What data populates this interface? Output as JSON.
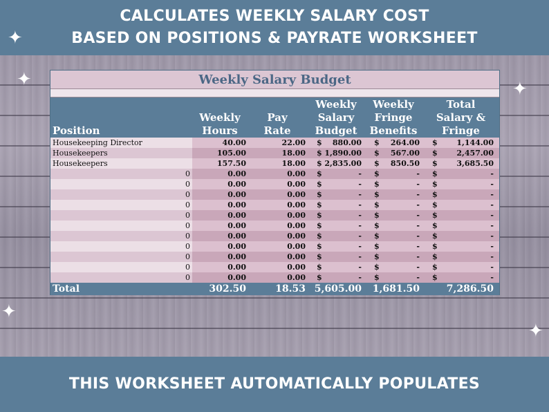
{
  "banner": {
    "line1": "CALCULATES WEEKLY SALARY COST",
    "line2": "BASED ON POSITIONS & PAYRATE WORKSHEET",
    "bottom": "THIS WORKSHEET AUTOMATICALLY POPULATES"
  },
  "sheet": {
    "title": "Weekly Salary Budget",
    "headers": {
      "position": "Position",
      "hours": [
        "Weekly",
        "Hours"
      ],
      "rate": [
        "Pay",
        "Rate"
      ],
      "salary": [
        "Weekly",
        "Salary",
        "Budget"
      ],
      "fringe": [
        "Weekly",
        "Fringe",
        "Benefits"
      ],
      "total": [
        "Total",
        "Salary &",
        "Fringe"
      ]
    },
    "currency": "$",
    "rows": [
      {
        "position": "Housekeeping Director",
        "hours": "40.00",
        "rate": "22.00",
        "salary": "880.00",
        "fringe": "264.00",
        "total": "1,144.00"
      },
      {
        "position": "Housekeepers",
        "hours": "105.00",
        "rate": "18.00",
        "salary": "1,890.00",
        "fringe": "567.00",
        "total": "2,457.00"
      },
      {
        "position": "Housekeepers",
        "hours": "157.50",
        "rate": "18.00",
        "salary": "2,835.00",
        "fringe": "850.50",
        "total": "3,685.50"
      },
      {
        "position": "0",
        "hours": "0.00",
        "rate": "0.00",
        "salary": "-",
        "fringe": "-",
        "total": "-"
      },
      {
        "position": "0",
        "hours": "0.00",
        "rate": "0.00",
        "salary": "-",
        "fringe": "-",
        "total": "-"
      },
      {
        "position": "0",
        "hours": "0.00",
        "rate": "0.00",
        "salary": "-",
        "fringe": "-",
        "total": "-"
      },
      {
        "position": "0",
        "hours": "0.00",
        "rate": "0.00",
        "salary": "-",
        "fringe": "-",
        "total": "-"
      },
      {
        "position": "0",
        "hours": "0.00",
        "rate": "0.00",
        "salary": "-",
        "fringe": "-",
        "total": "-"
      },
      {
        "position": "0",
        "hours": "0.00",
        "rate": "0.00",
        "salary": "-",
        "fringe": "-",
        "total": "-"
      },
      {
        "position": "0",
        "hours": "0.00",
        "rate": "0.00",
        "salary": "-",
        "fringe": "-",
        "total": "-"
      },
      {
        "position": "0",
        "hours": "0.00",
        "rate": "0.00",
        "salary": "-",
        "fringe": "-",
        "total": "-"
      },
      {
        "position": "0",
        "hours": "0.00",
        "rate": "0.00",
        "salary": "-",
        "fringe": "-",
        "total": "-"
      },
      {
        "position": "0",
        "hours": "0.00",
        "rate": "0.00",
        "salary": "-",
        "fringe": "-",
        "total": "-"
      },
      {
        "position": "0",
        "hours": "0.00",
        "rate": "0.00",
        "salary": "-",
        "fringe": "-",
        "total": "-"
      },
      {
        "position": "0",
        "hours": "0.00",
        "rate": "0.00",
        "salary": "-",
        "fringe": "-",
        "total": "-"
      }
    ],
    "totals": {
      "label": "Total",
      "hours": "302.50",
      "rate": "18.53",
      "salary": "5,605.00",
      "fringe": "1,681.50",
      "total": "7,286.50"
    }
  },
  "colors": {
    "banner": "#5b7d98",
    "header_fill": "#5b7d98",
    "title_text": "#4b6785",
    "row_light": "#ecdfe6",
    "row_dark": "#dcc6d3",
    "col_light": "#dcc0cf",
    "col_dark": "#c9a7b9"
  },
  "icons": [
    "sparkle-icon"
  ]
}
